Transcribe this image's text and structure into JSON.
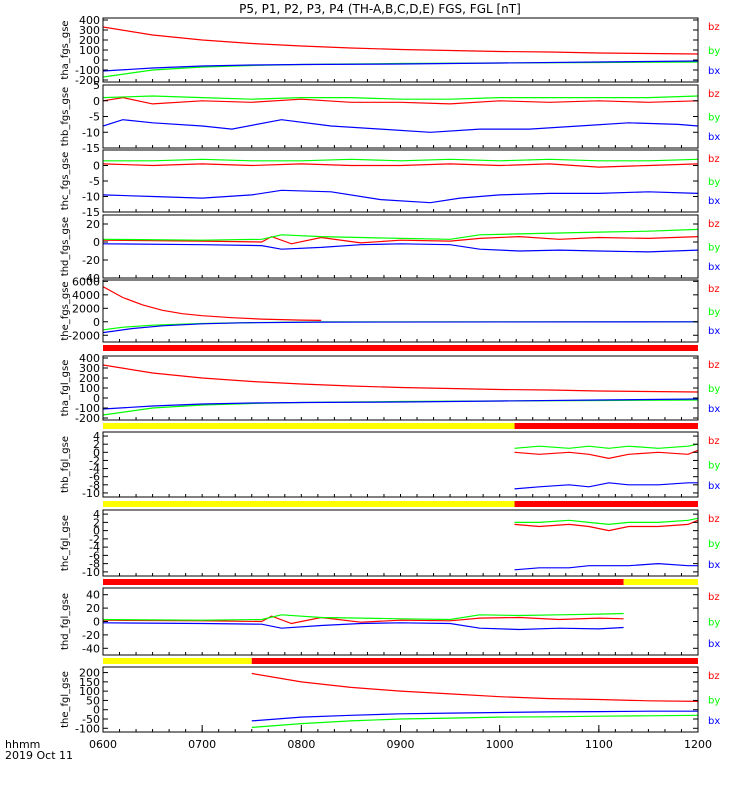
{
  "title": "P5, P1, P2, P3, P4 (TH-A,B,C,D,E) FGS, FGL [nT]",
  "xaxis": {
    "label_line1": "hhmm",
    "label_line2": "2019 Oct 11",
    "range": [
      "0600",
      "1200"
    ],
    "ticks": [
      "0600",
      "0700",
      "0800",
      "0900",
      "1000",
      "1100",
      "1200"
    ]
  },
  "colors": {
    "bz": "#ff0000",
    "by": "#00ff00",
    "bx": "#0000ff",
    "bar_red": "#ff0000",
    "bar_yellow": "#ffff00",
    "bar_black": "#000000"
  },
  "legend": {
    "bz": "bz",
    "by": "by",
    "bx": "bx"
  },
  "chart_data": [
    {
      "type": "line",
      "ylabel": "tha_fgs_gse",
      "ylim": [
        -220,
        420
      ],
      "yticks": [
        400,
        300,
        200,
        100,
        0,
        -100,
        -200
      ],
      "series": [
        {
          "name": "bz",
          "x": [
            6.0,
            6.5,
            7.0,
            7.5,
            8.0,
            8.5,
            9.0,
            9.5,
            10.0,
            10.5,
            11.0,
            11.5,
            12.0
          ],
          "y": [
            330,
            250,
            200,
            165,
            140,
            120,
            105,
            95,
            85,
            80,
            70,
            65,
            60
          ]
        },
        {
          "name": "by",
          "x": [
            6.0,
            6.5,
            7.0,
            7.5,
            8.0,
            8.5,
            9.0,
            10.0,
            11.0,
            12.0
          ],
          "y": [
            -170,
            -100,
            -70,
            -55,
            -45,
            -40,
            -35,
            -30,
            -25,
            -20
          ]
        },
        {
          "name": "bx",
          "x": [
            6.0,
            6.5,
            7.0,
            7.5,
            8.0,
            9.0,
            10.0,
            11.0,
            12.0
          ],
          "y": [
            -110,
            -80,
            -60,
            -50,
            -45,
            -40,
            -30,
            -20,
            -10
          ]
        }
      ]
    },
    {
      "type": "line",
      "ylabel": "thb_fgs_gse",
      "ylim": [
        -15,
        5
      ],
      "yticks": [
        5,
        0,
        -5,
        -10,
        -15
      ],
      "series": [
        {
          "name": "bz",
          "x": [
            6.0,
            6.2,
            6.5,
            7.0,
            7.5,
            8.0,
            8.5,
            9.0,
            9.5,
            10.0,
            10.5,
            11.0,
            11.5,
            12.0
          ],
          "y": [
            0,
            1,
            -1,
            0,
            -0.5,
            0.5,
            -0.5,
            -0.5,
            -1,
            0,
            -0.5,
            0,
            -0.5,
            0
          ]
        },
        {
          "name": "by",
          "x": [
            6.0,
            6.5,
            7.0,
            7.5,
            8.0,
            8.5,
            9.0,
            9.5,
            10.0,
            10.5,
            11.0,
            11.5,
            12.0
          ],
          "y": [
            1,
            1.5,
            1,
            0.5,
            1,
            1,
            0.5,
            0.5,
            1,
            1,
            1,
            1,
            1.5
          ]
        },
        {
          "name": "bx",
          "x": [
            6.0,
            6.2,
            6.5,
            7.0,
            7.3,
            7.8,
            8.3,
            8.8,
            9.3,
            9.8,
            10.3,
            10.8,
            11.3,
            11.8,
            12.0
          ],
          "y": [
            -8,
            -6,
            -7,
            -8,
            -9,
            -6,
            -8,
            -9,
            -10,
            -9,
            -9,
            -8,
            -7,
            -7.5,
            -8
          ]
        }
      ]
    },
    {
      "type": "line",
      "ylabel": "thc_fgs_gse",
      "ylim": [
        -15,
        5
      ],
      "yticks": [
        0,
        -5,
        -10,
        -15
      ],
      "series": [
        {
          "name": "bz",
          "x": [
            6.0,
            6.5,
            7.0,
            7.5,
            8.0,
            8.5,
            9.0,
            9.5,
            10.0,
            10.5,
            11.0,
            11.5,
            12.0
          ],
          "y": [
            0.5,
            0,
            0.5,
            0,
            0.5,
            0,
            0,
            0.5,
            0,
            0.5,
            -0.5,
            0,
            0.5
          ]
        },
        {
          "name": "by",
          "x": [
            6.0,
            6.5,
            7.0,
            7.5,
            8.0,
            8.5,
            9.0,
            9.5,
            10.0,
            10.5,
            11.0,
            11.5,
            12.0
          ],
          "y": [
            1.5,
            1.5,
            2,
            1.5,
            1.5,
            2,
            1.5,
            2,
            1.5,
            2,
            1.5,
            1.5,
            2
          ]
        },
        {
          "name": "bx",
          "x": [
            6.0,
            6.5,
            7.0,
            7.5,
            7.8,
            8.3,
            8.8,
            9.3,
            9.6,
            10.0,
            10.5,
            11.0,
            11.5,
            12.0
          ],
          "y": [
            -9.5,
            -10,
            -10.5,
            -9.5,
            -8,
            -8.5,
            -11,
            -12,
            -10.5,
            -9.5,
            -9,
            -9,
            -8.5,
            -9
          ]
        }
      ]
    },
    {
      "type": "line",
      "ylabel": "thd_fgs_gse",
      "ylim": [
        -40,
        30
      ],
      "yticks": [
        20,
        0,
        -20,
        -40
      ],
      "series": [
        {
          "name": "bz",
          "x": [
            6.0,
            7.0,
            7.6,
            7.7,
            7.9,
            8.2,
            8.6,
            9.0,
            9.5,
            9.8,
            10.2,
            10.6,
            11.0,
            11.5,
            12.0
          ],
          "y": [
            2,
            1,
            0,
            6,
            -2,
            5,
            -1,
            2,
            1,
            4,
            6,
            3,
            5,
            4,
            6
          ]
        },
        {
          "name": "by",
          "x": [
            6.0,
            7.0,
            7.6,
            7.8,
            8.2,
            8.6,
            9.0,
            9.5,
            9.8,
            10.2,
            10.6,
            11.0,
            11.5,
            12.0
          ],
          "y": [
            3,
            2,
            3,
            8,
            6,
            5,
            4,
            3,
            8,
            9,
            10,
            11,
            12,
            14
          ]
        },
        {
          "name": "bx",
          "x": [
            6.0,
            7.0,
            7.6,
            7.8,
            8.2,
            8.6,
            9.0,
            9.5,
            9.8,
            10.2,
            10.6,
            11.0,
            11.5,
            12.0
          ],
          "y": [
            -2,
            -3,
            -4,
            -8,
            -6,
            -3,
            -2,
            -3,
            -8,
            -10,
            -9,
            -10,
            -11,
            -9
          ]
        }
      ]
    },
    {
      "type": "line",
      "ylabel": "the_fgs_gse",
      "ylim": [
        -3000,
        6200
      ],
      "yticks": [
        6000,
        4000,
        2000,
        0,
        -2000
      ],
      "series": [
        {
          "name": "bz",
          "x": [
            6.0,
            6.2,
            6.4,
            6.6,
            6.8,
            7.0,
            7.3,
            7.6,
            8.0,
            8.2
          ],
          "y": [
            5200,
            3600,
            2500,
            1700,
            1200,
            900,
            600,
            400,
            250,
            200
          ]
        },
        {
          "name": "by",
          "x": [
            6.0,
            6.2,
            6.5,
            7.0,
            7.5,
            8.2,
            12.0
          ],
          "y": [
            -1200,
            -800,
            -500,
            -250,
            -120,
            0,
            0
          ]
        },
        {
          "name": "bx",
          "x": [
            6.0,
            6.3,
            6.6,
            7.0,
            7.4,
            8.2,
            12.0
          ],
          "y": [
            -1600,
            -1000,
            -600,
            -300,
            -150,
            -50,
            0
          ]
        }
      ]
    },
    {
      "type": "line",
      "ylabel": "tha_fgl_gse",
      "ylim": [
        -220,
        420
      ],
      "yticks": [
        400,
        300,
        200,
        100,
        0,
        -100,
        -200
      ],
      "series": [
        {
          "name": "bz",
          "x": [
            6.0,
            6.5,
            7.0,
            7.5,
            8.0,
            8.5,
            9.0,
            9.5,
            10.0,
            10.5,
            11.0,
            11.5,
            12.0
          ],
          "y": [
            330,
            250,
            200,
            165,
            140,
            120,
            105,
            95,
            85,
            80,
            70,
            65,
            60
          ]
        },
        {
          "name": "by",
          "x": [
            6.0,
            6.5,
            7.0,
            7.5,
            8.0,
            8.5,
            9.0,
            10.0,
            11.0,
            12.0
          ],
          "y": [
            -170,
            -100,
            -70,
            -55,
            -45,
            -40,
            -35,
            -30,
            -25,
            -20
          ]
        },
        {
          "name": "bx",
          "x": [
            6.0,
            6.5,
            7.0,
            7.5,
            8.0,
            9.0,
            10.0,
            11.0,
            12.0
          ],
          "y": [
            -110,
            -80,
            -60,
            -50,
            -45,
            -40,
            -30,
            -20,
            -10
          ]
        }
      ]
    },
    {
      "type": "line",
      "ylabel": "thb_fgl_gse",
      "ylim": [
        -11,
        5
      ],
      "yticks": [
        4,
        2,
        0,
        -2,
        -4,
        -6,
        -8,
        -10
      ],
      "series": [
        {
          "name": "bz",
          "x": [
            10.15,
            10.4,
            10.7,
            10.9,
            11.1,
            11.3,
            11.6,
            11.9,
            12.0
          ],
          "y": [
            0,
            -0.5,
            0,
            -0.5,
            -1.5,
            -0.5,
            0,
            -0.5,
            0.5
          ]
        },
        {
          "name": "by",
          "x": [
            10.15,
            10.4,
            10.7,
            10.9,
            11.1,
            11.3,
            11.6,
            11.9,
            12.0
          ],
          "y": [
            1,
            1.5,
            1,
            1.5,
            1,
            1.5,
            1,
            1.5,
            2
          ]
        },
        {
          "name": "bx",
          "x": [
            10.15,
            10.4,
            10.7,
            10.9,
            11.1,
            11.3,
            11.6,
            11.9,
            12.0
          ],
          "y": [
            -9,
            -8.5,
            -8,
            -8.5,
            -7.5,
            -8,
            -8,
            -7.5,
            -7.5
          ]
        }
      ]
    },
    {
      "type": "line",
      "ylabel": "thc_fgl_gse",
      "ylim": [
        -11,
        5
      ],
      "yticks": [
        4,
        2,
        0,
        -2,
        -4,
        -6,
        -8,
        -10
      ],
      "series": [
        {
          "name": "bz",
          "x": [
            10.15,
            10.4,
            10.7,
            10.9,
            11.1,
            11.3,
            11.6,
            11.9,
            12.0
          ],
          "y": [
            1.5,
            1,
            1.5,
            1,
            0,
            1,
            1,
            1.5,
            2.5
          ]
        },
        {
          "name": "by",
          "x": [
            10.15,
            10.4,
            10.7,
            10.9,
            11.1,
            11.3,
            11.6,
            11.9,
            12.0
          ],
          "y": [
            2,
            2,
            2.5,
            2,
            1.5,
            2,
            2,
            2.5,
            3
          ]
        },
        {
          "name": "bx",
          "x": [
            10.15,
            10.4,
            10.7,
            10.9,
            11.1,
            11.3,
            11.6,
            11.9,
            12.0
          ],
          "y": [
            -9.5,
            -9,
            -9,
            -8.5,
            -8.5,
            -8.5,
            -8,
            -8.5,
            -8.5
          ]
        }
      ]
    },
    {
      "type": "line",
      "ylabel": "thd_fgl_gse",
      "ylim": [
        -50,
        50
      ],
      "yticks": [
        40,
        20,
        0,
        -20,
        -40
      ],
      "series": [
        {
          "name": "bz",
          "x": [
            6.0,
            7.0,
            7.6,
            7.7,
            7.9,
            8.2,
            8.6,
            9.0,
            9.5,
            9.8,
            10.2,
            10.6,
            11.0,
            11.25
          ],
          "y": [
            2,
            1,
            0,
            8,
            -3,
            6,
            -1,
            2,
            1,
            5,
            6,
            3,
            5,
            4
          ]
        },
        {
          "name": "by",
          "x": [
            6.0,
            7.0,
            7.6,
            7.8,
            8.2,
            8.6,
            9.0,
            9.5,
            9.8,
            10.2,
            10.6,
            11.0,
            11.25
          ],
          "y": [
            3,
            2,
            3,
            10,
            6,
            5,
            4,
            3,
            10,
            9,
            10,
            11,
            12
          ]
        },
        {
          "name": "bx",
          "x": [
            6.0,
            7.0,
            7.6,
            7.8,
            8.2,
            8.6,
            9.0,
            9.5,
            9.8,
            10.2,
            10.6,
            11.0,
            11.25
          ],
          "y": [
            -2,
            -3,
            -4,
            -10,
            -6,
            -3,
            -2,
            -3,
            -10,
            -12,
            -10,
            -11,
            -9
          ]
        }
      ]
    },
    {
      "type": "line",
      "ylabel": "the_fgl_gse",
      "ylim": [
        -120,
        230
      ],
      "yticks": [
        200,
        150,
        100,
        50,
        0,
        -50,
        -100
      ],
      "series": [
        {
          "name": "bz",
          "x": [
            7.5,
            8.0,
            8.5,
            9.0,
            9.5,
            10.0,
            10.5,
            11.0,
            11.5,
            12.0
          ],
          "y": [
            195,
            150,
            120,
            100,
            85,
            70,
            60,
            55,
            48,
            45
          ]
        },
        {
          "name": "by",
          "x": [
            7.5,
            8.0,
            8.5,
            9.0,
            9.5,
            10.0,
            10.5,
            11.0,
            11.5,
            12.0
          ],
          "y": [
            -95,
            -75,
            -60,
            -50,
            -45,
            -40,
            -38,
            -35,
            -33,
            -30
          ]
        },
        {
          "name": "bx",
          "x": [
            7.5,
            8.0,
            8.5,
            9.0,
            9.5,
            10.0,
            10.5,
            11.0,
            11.5,
            12.0
          ],
          "y": [
            -60,
            -40,
            -30,
            -22,
            -18,
            -15,
            -12,
            -10,
            -8,
            -8
          ]
        }
      ]
    }
  ],
  "status_bars": [
    {
      "segments": [
        {
          "from": 6.0,
          "to": 12.0,
          "color": "red"
        }
      ]
    },
    {
      "segments": [
        {
          "from": 6.0,
          "to": 10.15,
          "color": "yellow"
        },
        {
          "from": 10.15,
          "to": 12.0,
          "color": "red"
        }
      ]
    },
    {
      "segments": [
        {
          "from": 6.0,
          "to": 10.15,
          "color": "yellow"
        },
        {
          "from": 10.15,
          "to": 12.0,
          "color": "red"
        }
      ]
    },
    {
      "segments": [
        {
          "from": 6.0,
          "to": 11.25,
          "color": "red"
        },
        {
          "from": 11.25,
          "to": 12.0,
          "color": "yellow"
        }
      ]
    },
    {
      "segments": [
        {
          "from": 6.0,
          "to": 7.5,
          "color": "yellow"
        },
        {
          "from": 7.5,
          "to": 12.0,
          "color": "red"
        }
      ]
    }
  ]
}
